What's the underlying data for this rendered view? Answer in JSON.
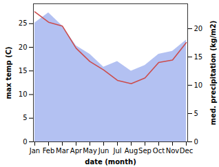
{
  "chart_data": {
    "type": "line",
    "x_label": "date (month)",
    "y_label": "max temp (C)",
    "y2_label": "med. precipitation (kg/m2)",
    "categories": [
      "Jan",
      "Feb",
      "Mar",
      "Apr",
      "May",
      "Jun",
      "Jul",
      "Aug",
      "Sep",
      "Oct",
      "Nov",
      "Dec"
    ],
    "series": [
      {
        "name": "med. precipitation (kg/m2)",
        "type": "area",
        "axis": "y2",
        "color": "#b3c1f2",
        "values": [
          21,
          22.8,
          20.5,
          17,
          15.5,
          13.2,
          14.2,
          12.5,
          13.5,
          15.5,
          16,
          18
        ]
      },
      {
        "name": "max temp (C)",
        "type": "line",
        "axis": "y",
        "color": "#cc4c4c",
        "values": [
          27.5,
          25.3,
          24.5,
          19.8,
          17,
          15.2,
          13,
          12.3,
          13.5,
          16.8,
          17.3,
          21
        ]
      }
    ],
    "ylim": [
      0,
      29.2
    ],
    "yticks": [
      0,
      5,
      10,
      15,
      20,
      25
    ],
    "y2lim": [
      0,
      24.4
    ],
    "y2ticks": [
      0,
      5,
      10,
      15,
      20
    ],
    "grid": false
  }
}
